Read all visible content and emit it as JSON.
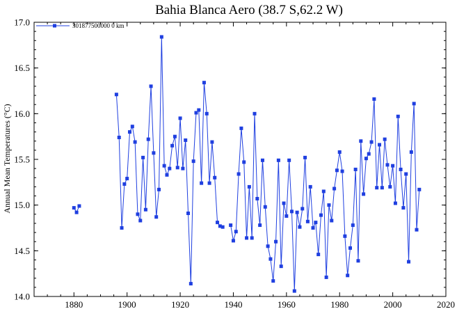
{
  "chart_data": {
    "type": "line",
    "title": "Bahia Blanca Aero (38.7 S,62.2 W)",
    "xlabel": "",
    "ylabel": "Annual Mean Temperatures (°C)",
    "xlim": [
      1865,
      2020
    ],
    "ylim": [
      14.0,
      17.0
    ],
    "x_ticks": [
      1880,
      1900,
      1920,
      1940,
      1960,
      1980,
      2000,
      2020
    ],
    "y_ticks": [
      14.0,
      14.5,
      15.0,
      15.5,
      16.0,
      16.5,
      17.0
    ],
    "grid": false,
    "legend_position": "top-left",
    "color": "#1f3fe0",
    "series": [
      {
        "name": "301877500000  0 km",
        "points": [
          [
            1880,
            14.97
          ],
          [
            1881,
            14.92
          ],
          [
            1882,
            14.99
          ],
          [
            1883,
            null
          ],
          [
            1896,
            16.21
          ],
          [
            1897,
            15.74
          ],
          [
            1898,
            14.75
          ],
          [
            1899,
            15.23
          ],
          [
            1900,
            15.29
          ],
          [
            1901,
            15.8
          ],
          [
            1902,
            15.86
          ],
          [
            1903,
            15.69
          ],
          [
            1904,
            14.9
          ],
          [
            1905,
            14.83
          ],
          [
            1906,
            15.52
          ],
          [
            1907,
            14.95
          ],
          [
            1908,
            15.72
          ],
          [
            1909,
            16.3
          ],
          [
            1910,
            15.57
          ],
          [
            1911,
            14.87
          ],
          [
            1912,
            15.17
          ],
          [
            1913,
            16.84
          ],
          [
            1914,
            15.43
          ],
          [
            1915,
            15.33
          ],
          [
            1916,
            15.4
          ],
          [
            1917,
            15.65
          ],
          [
            1918,
            15.75
          ],
          [
            1919,
            15.41
          ],
          [
            1920,
            15.95
          ],
          [
            1921,
            15.4
          ],
          [
            1922,
            15.71
          ],
          [
            1923,
            14.91
          ],
          [
            1924,
            14.14
          ],
          [
            1925,
            15.48
          ],
          [
            1926,
            16.01
          ],
          [
            1927,
            16.04
          ],
          [
            1928,
            15.24
          ],
          [
            1929,
            16.34
          ],
          [
            1930,
            16.0
          ],
          [
            1931,
            15.24
          ],
          [
            1932,
            15.69
          ],
          [
            1933,
            15.3
          ],
          [
            1934,
            14.81
          ],
          [
            1935,
            14.77
          ],
          [
            1936,
            14.76
          ],
          [
            1937,
            null
          ],
          [
            1939,
            14.78
          ],
          [
            1940,
            14.61
          ],
          [
            1941,
            14.71
          ],
          [
            1942,
            15.34
          ],
          [
            1943,
            15.84
          ],
          [
            1944,
            15.47
          ],
          [
            1945,
            14.64
          ],
          [
            1946,
            15.2
          ],
          [
            1947,
            14.64
          ],
          [
            1948,
            16.0
          ],
          [
            1949,
            15.07
          ],
          [
            1950,
            14.78
          ],
          [
            1951,
            15.49
          ],
          [
            1952,
            14.98
          ],
          [
            1953,
            14.55
          ],
          [
            1954,
            14.41
          ],
          [
            1955,
            14.17
          ],
          [
            1956,
            14.6
          ],
          [
            1957,
            15.49
          ],
          [
            1958,
            14.33
          ],
          [
            1959,
            15.02
          ],
          [
            1960,
            14.88
          ],
          [
            1961,
            15.49
          ],
          [
            1962,
            14.93
          ],
          [
            1963,
            14.06
          ],
          [
            1964,
            14.92
          ],
          [
            1965,
            14.76
          ],
          [
            1966,
            14.96
          ],
          [
            1967,
            15.52
          ],
          [
            1968,
            14.82
          ],
          [
            1969,
            15.2
          ],
          [
            1970,
            14.75
          ],
          [
            1971,
            14.81
          ],
          [
            1972,
            14.46
          ],
          [
            1973,
            14.89
          ],
          [
            1974,
            15.15
          ],
          [
            1975,
            14.21
          ],
          [
            1976,
            15.0
          ],
          [
            1977,
            14.83
          ],
          [
            1978,
            15.18
          ],
          [
            1979,
            15.38
          ],
          [
            1980,
            15.58
          ],
          [
            1981,
            15.37
          ],
          [
            1982,
            14.66
          ],
          [
            1983,
            14.23
          ],
          [
            1984,
            14.53
          ],
          [
            1985,
            14.78
          ],
          [
            1986,
            15.39
          ],
          [
            1987,
            14.39
          ],
          [
            1988,
            15.7
          ],
          [
            1989,
            15.12
          ],
          [
            1990,
            15.51
          ],
          [
            1991,
            15.56
          ],
          [
            1992,
            15.69
          ],
          [
            1993,
            16.16
          ],
          [
            1994,
            15.19
          ],
          [
            1995,
            15.66
          ],
          [
            1996,
            15.19
          ],
          [
            1997,
            15.72
          ],
          [
            1998,
            15.44
          ],
          [
            1999,
            15.2
          ],
          [
            2000,
            15.43
          ],
          [
            2001,
            15.02
          ],
          [
            2002,
            15.97
          ],
          [
            2003,
            15.39
          ],
          [
            2004,
            14.97
          ],
          [
            2005,
            15.34
          ],
          [
            2006,
            14.38
          ],
          [
            2007,
            15.58
          ],
          [
            2008,
            16.11
          ],
          [
            2009,
            14.73
          ],
          [
            2010,
            15.17
          ]
        ]
      }
    ]
  }
}
